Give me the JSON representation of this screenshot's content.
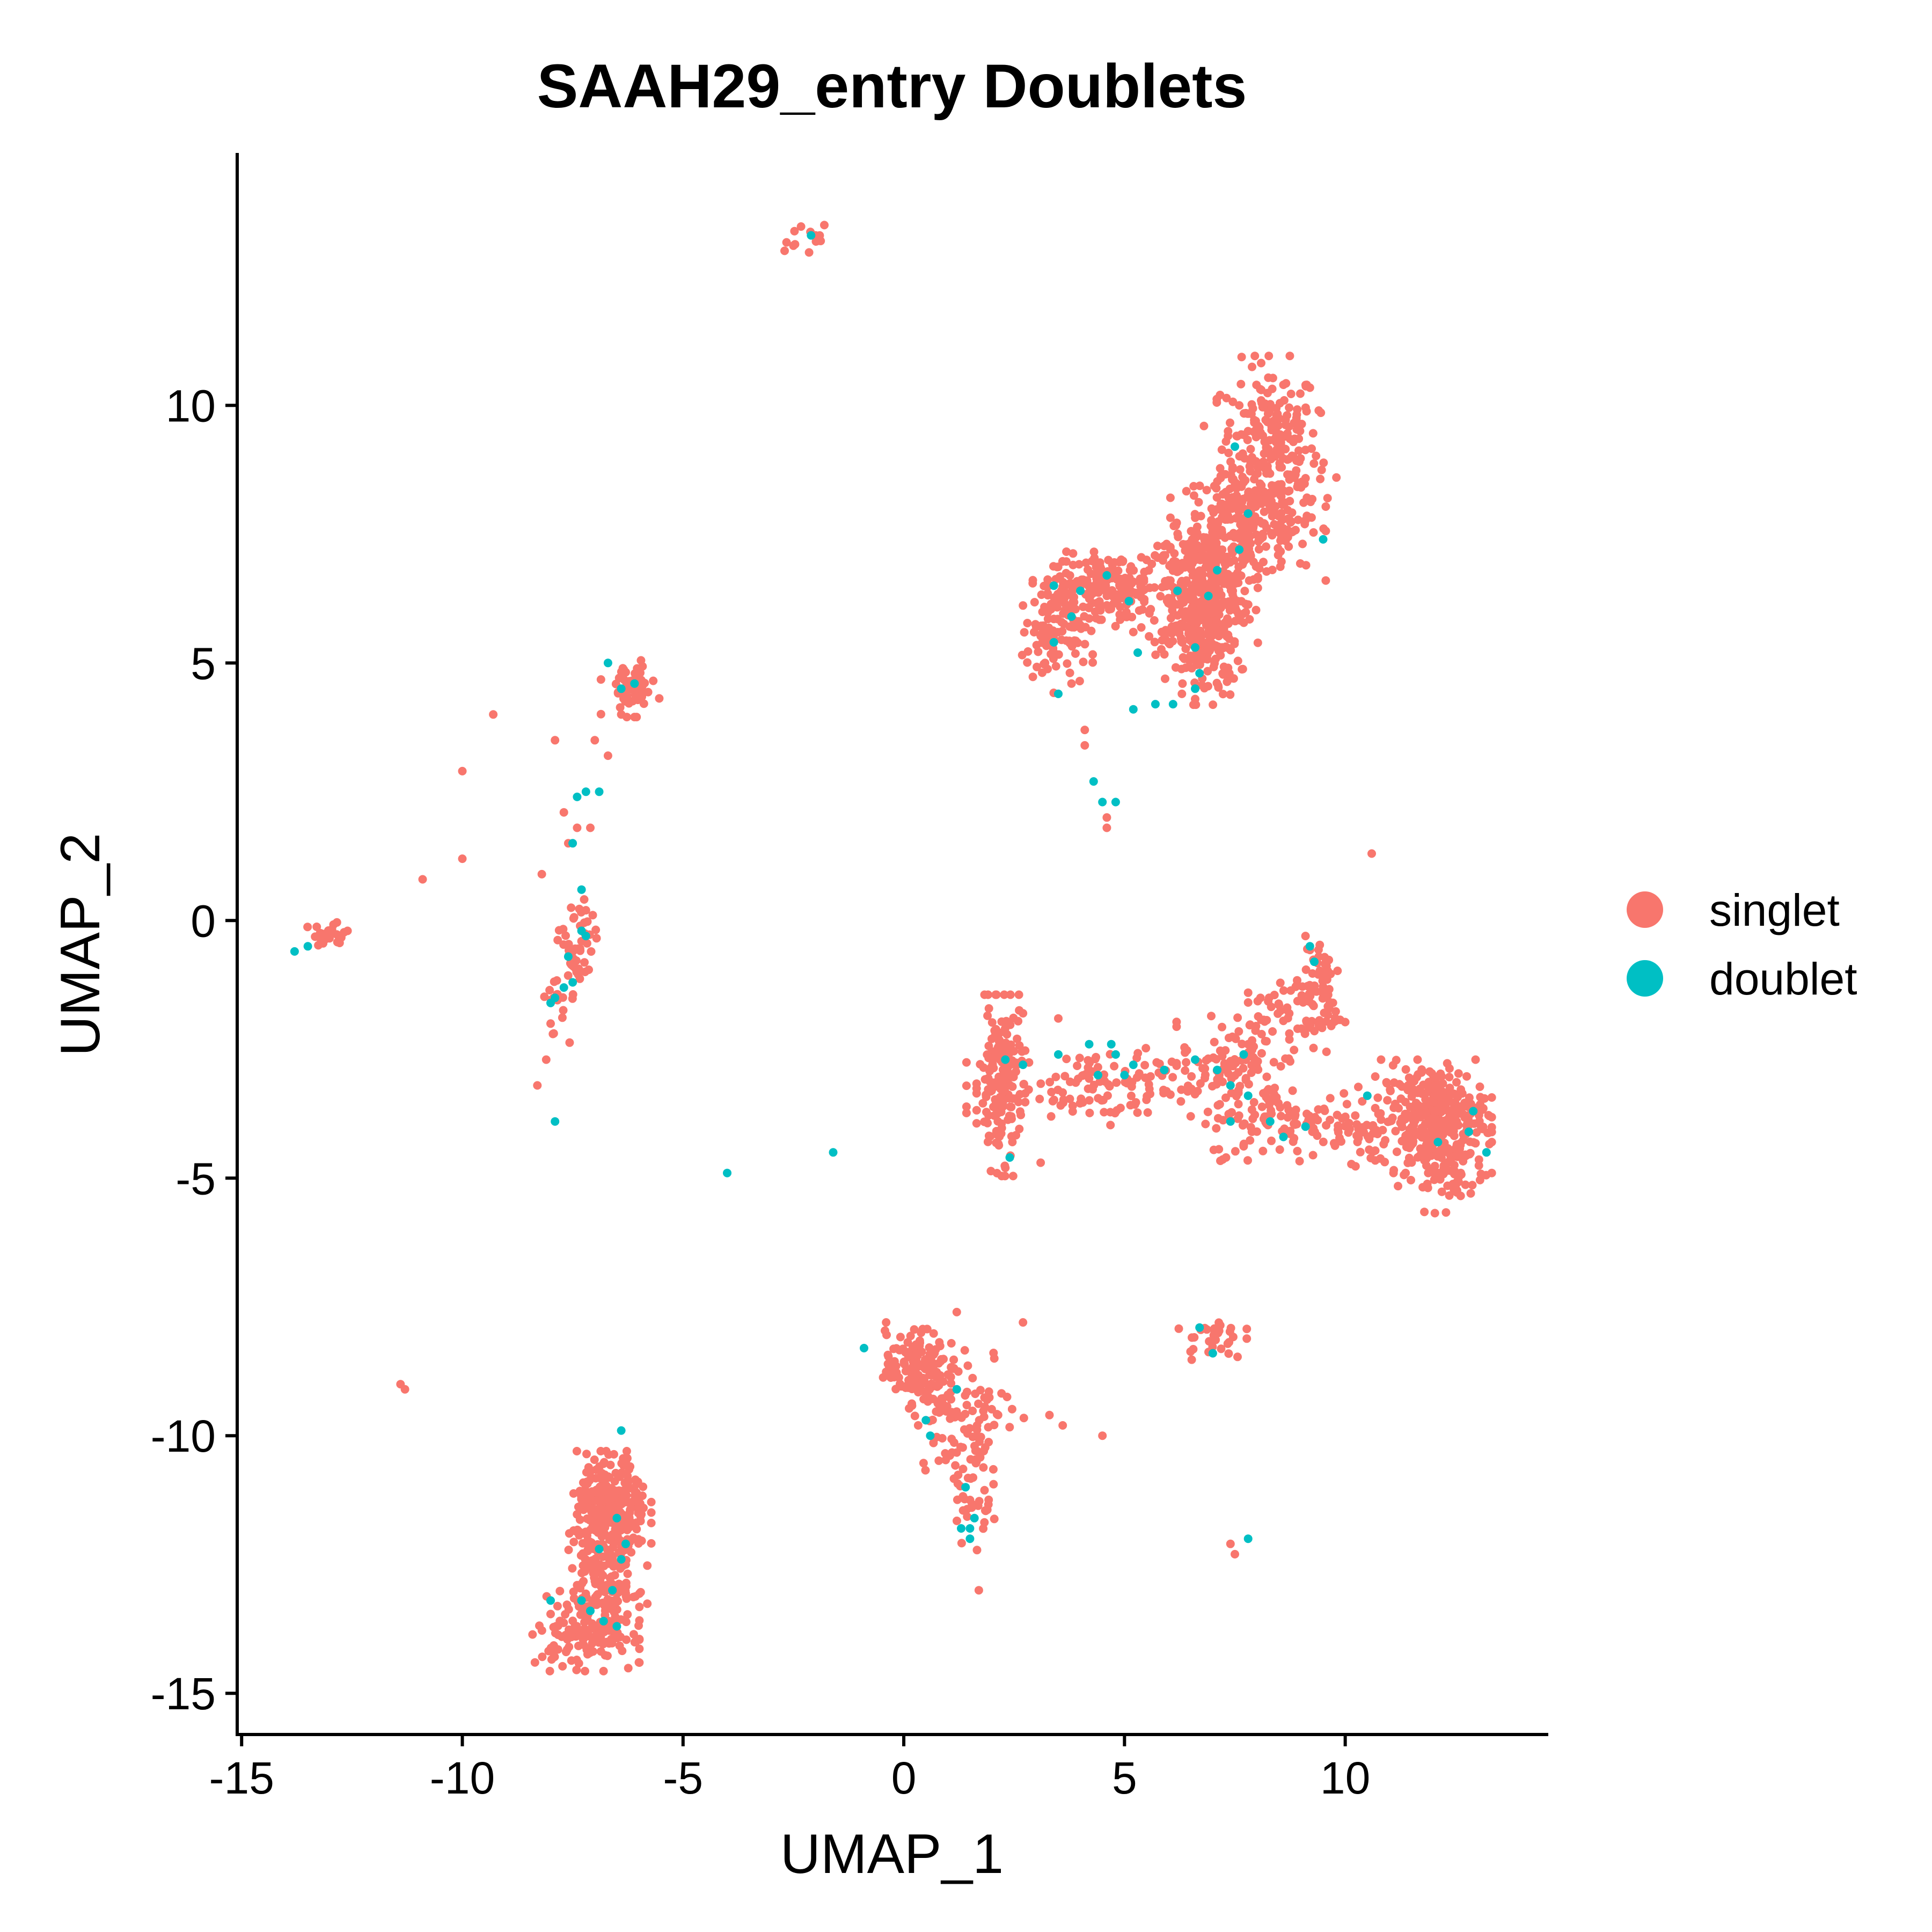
{
  "chart_data": {
    "type": "scatter",
    "title": "SAAH29_entry Doublets",
    "xlabel": "UMAP_1",
    "ylabel": "UMAP_2",
    "xlim": [
      -15.1,
      14.6
    ],
    "ylim": [
      -15.8,
      14.9
    ],
    "xticks": [
      -15,
      -10,
      -5,
      0,
      5,
      10
    ],
    "yticks": [
      -15,
      -10,
      -5,
      0,
      5,
      10
    ],
    "xtick_labels": [
      "-15",
      "-10",
      "-5",
      "0",
      "5",
      "10"
    ],
    "ytick_labels": [
      "-15",
      "-10",
      "-5",
      "0",
      "5",
      "10"
    ],
    "grid": false,
    "legend_position": "right",
    "series": [
      {
        "name": "singlet",
        "color": "#F8766D",
        "clusters": [
          {
            "cx": 8.3,
            "cy": 9.2,
            "sx": 0.55,
            "sy": 0.8,
            "n": 220
          },
          {
            "cx": 7.8,
            "cy": 7.7,
            "sx": 0.8,
            "sy": 0.5,
            "n": 260
          },
          {
            "cx": 6.7,
            "cy": 6.4,
            "sx": 0.6,
            "sy": 0.6,
            "n": 300
          },
          {
            "cx": 6.8,
            "cy": 5.4,
            "sx": 0.4,
            "sy": 0.55,
            "n": 160
          },
          {
            "cx": 4.8,
            "cy": 6.5,
            "sx": 0.7,
            "sy": 0.3,
            "n": 150
          },
          {
            "cx": 3.8,
            "cy": 6.2,
            "sx": 0.5,
            "sy": 0.35,
            "n": 100
          },
          {
            "cx": 3.4,
            "cy": 5.3,
            "sx": 0.4,
            "sy": 0.4,
            "n": 55
          },
          {
            "cx": 2.2,
            "cy": -3.2,
            "sx": 0.25,
            "sy": 0.8,
            "n": 170
          },
          {
            "cx": 4.5,
            "cy": -3.2,
            "sx": 1.4,
            "sy": 0.35,
            "n": 140
          },
          {
            "cx": 7.5,
            "cy": -2.7,
            "sx": 0.6,
            "sy": 0.4,
            "n": 70
          },
          {
            "cx": 8.9,
            "cy": -1.8,
            "sx": 0.5,
            "sy": 0.4,
            "n": 70
          },
          {
            "cx": 9.4,
            "cy": -1.1,
            "sx": 0.25,
            "sy": 0.5,
            "n": 45
          },
          {
            "cx": 8.7,
            "cy": -3.9,
            "sx": 0.9,
            "sy": 0.35,
            "n": 110
          },
          {
            "cx": 10.6,
            "cy": -4.0,
            "sx": 0.6,
            "sy": 0.35,
            "n": 50
          },
          {
            "cx": 12.0,
            "cy": -3.8,
            "sx": 0.6,
            "sy": 0.5,
            "n": 300
          },
          {
            "cx": 12.2,
            "cy": -4.8,
            "sx": 0.5,
            "sy": 0.4,
            "n": 80
          },
          {
            "cx": 0.3,
            "cy": -8.7,
            "sx": 0.35,
            "sy": 0.35,
            "n": 150
          },
          {
            "cx": 1.4,
            "cy": -9.5,
            "sx": 0.6,
            "sy": 0.6,
            "n": 90
          },
          {
            "cx": 1.5,
            "cy": -10.9,
            "sx": 0.25,
            "sy": 0.6,
            "n": 45
          },
          {
            "cx": 7.0,
            "cy": -8.1,
            "sx": 0.35,
            "sy": 0.2,
            "n": 30
          },
          {
            "cx": -6.6,
            "cy": -11.4,
            "sx": 0.4,
            "sy": 0.5,
            "n": 260
          },
          {
            "cx": -6.8,
            "cy": -12.8,
            "sx": 0.45,
            "sy": 0.7,
            "n": 150
          },
          {
            "cx": -7.2,
            "cy": -13.8,
            "sx": 0.55,
            "sy": 0.35,
            "n": 130
          },
          {
            "cx": -6.2,
            "cy": 4.5,
            "sx": 0.3,
            "sy": 0.25,
            "n": 55
          },
          {
            "cx": -7.4,
            "cy": -0.6,
            "sx": 0.2,
            "sy": 0.5,
            "n": 50
          },
          {
            "cx": -7.9,
            "cy": -1.6,
            "sx": 0.15,
            "sy": 0.35,
            "n": 15
          },
          {
            "cx": -13.1,
            "cy": -0.3,
            "sx": 0.25,
            "sy": 0.12,
            "n": 22
          },
          {
            "cx": -2.2,
            "cy": 13.2,
            "sx": 0.25,
            "sy": 0.15,
            "n": 10
          }
        ],
        "points": [
          [
            -11.4,
            -9.0
          ],
          [
            -11.3,
            -9.1
          ],
          [
            -10.9,
            0.8
          ],
          [
            -10.0,
            1.2
          ],
          [
            -10.0,
            2.9
          ],
          [
            -9.3,
            4.0
          ],
          [
            -8.3,
            -3.2
          ],
          [
            -8.1,
            -2.7
          ],
          [
            -8.0,
            -2.0
          ],
          [
            -8.2,
            0.9
          ],
          [
            -7.9,
            3.5
          ],
          [
            -7.7,
            2.1
          ],
          [
            -7.6,
            1.5
          ],
          [
            -7.4,
            1.8
          ],
          [
            -7.1,
            1.8
          ],
          [
            -7.0,
            3.5
          ],
          [
            -6.7,
            3.2
          ],
          [
            -6.4,
            4.0
          ],
          [
            -7.2,
            0.2
          ],
          [
            -7.3,
            -0.4
          ],
          [
            8.1,
            10.3
          ],
          [
            8.6,
            10.4
          ],
          [
            7.6,
            10.0
          ],
          [
            9.4,
            9.9
          ],
          [
            9.8,
            8.6
          ],
          [
            9.6,
            8.2
          ],
          [
            7.3,
            9.3
          ],
          [
            6.8,
            9.6
          ],
          [
            4.1,
            3.4
          ],
          [
            4.1,
            3.7
          ],
          [
            4.6,
            1.8
          ],
          [
            4.6,
            2.0
          ],
          [
            3.2,
            5.0
          ],
          [
            3.8,
            4.6
          ],
          [
            5.2,
            5.6
          ],
          [
            6.3,
            4.4
          ],
          [
            6.6,
            4.3
          ],
          [
            10.6,
            1.3
          ],
          [
            9.1,
            -0.3
          ],
          [
            9.4,
            -0.7
          ],
          [
            7.3,
            -4.6
          ],
          [
            6.5,
            -3.8
          ],
          [
            2.3,
            -4.8
          ],
          [
            3.1,
            -4.7
          ],
          [
            2.7,
            -1.8
          ],
          [
            3.5,
            -1.9
          ],
          [
            7.8,
            -1.4
          ],
          [
            3.3,
            -9.6
          ],
          [
            3.6,
            -9.8
          ],
          [
            4.5,
            -10.0
          ],
          [
            1.7,
            -13.0
          ],
          [
            7.4,
            -12.1
          ],
          [
            7.5,
            -12.3
          ],
          [
            -0.4,
            -7.8
          ],
          [
            1.2,
            -7.6
          ],
          [
            2.7,
            -7.8
          ],
          [
            -2.7,
            13.0
          ],
          [
            -2.5,
            13.1
          ],
          [
            -2.0,
            13.3
          ],
          [
            -1.8,
            13.5
          ],
          [
            -12.6,
            -0.2
          ],
          [
            -12.8,
            -0.3
          ],
          [
            -6.0,
            -14.4
          ],
          [
            -6.3,
            -12.5
          ],
          [
            -6.2,
            -10.6
          ]
        ]
      },
      {
        "name": "doublet",
        "color": "#00BFC4",
        "points": [
          [
            -13.8,
            -0.6
          ],
          [
            -13.5,
            -0.5
          ],
          [
            -6.7,
            5.0
          ],
          [
            -6.1,
            4.6
          ],
          [
            -6.4,
            4.5
          ],
          [
            -7.4,
            2.4
          ],
          [
            -7.2,
            2.5
          ],
          [
            -6.9,
            2.5
          ],
          [
            -7.5,
            1.5
          ],
          [
            -7.3,
            0.6
          ],
          [
            -7.3,
            -0.2
          ],
          [
            -7.2,
            -0.3
          ],
          [
            -7.6,
            -0.7
          ],
          [
            -7.7,
            -1.3
          ],
          [
            -7.5,
            -1.2
          ],
          [
            -7.9,
            -1.5
          ],
          [
            -8.0,
            -1.6
          ],
          [
            -7.9,
            -3.9
          ],
          [
            -4.0,
            -4.9
          ],
          [
            -1.6,
            -4.5
          ],
          [
            -2.1,
            13.3
          ],
          [
            -6.4,
            -9.9
          ],
          [
            -6.5,
            -11.6
          ],
          [
            -6.3,
            -12.1
          ],
          [
            -6.4,
            -12.4
          ],
          [
            -6.9,
            -12.2
          ],
          [
            -6.6,
            -13.0
          ],
          [
            -7.3,
            -13.2
          ],
          [
            -7.1,
            -13.4
          ],
          [
            -6.8,
            -13.6
          ],
          [
            -6.5,
            -13.7
          ],
          [
            -8.0,
            -13.2
          ],
          [
            -0.9,
            -8.3
          ],
          [
            0.5,
            -9.7
          ],
          [
            0.6,
            -10.0
          ],
          [
            1.2,
            -9.1
          ],
          [
            1.4,
            -11.0
          ],
          [
            1.5,
            -11.8
          ],
          [
            1.3,
            -11.8
          ],
          [
            1.5,
            -12.0
          ],
          [
            1.6,
            -11.6
          ],
          [
            6.7,
            -7.9
          ],
          [
            7.0,
            -8.4
          ],
          [
            7.8,
            -12.0
          ],
          [
            4.3,
            2.7
          ],
          [
            4.5,
            2.3
          ],
          [
            4.8,
            2.3
          ],
          [
            3.5,
            4.4
          ],
          [
            5.2,
            4.1
          ],
          [
            5.7,
            4.2
          ],
          [
            6.1,
            4.2
          ],
          [
            6.7,
            4.8
          ],
          [
            6.6,
            4.5
          ],
          [
            3.4,
            5.4
          ],
          [
            5.3,
            5.2
          ],
          [
            3.8,
            5.9
          ],
          [
            3.4,
            6.5
          ],
          [
            4.0,
            6.4
          ],
          [
            6.6,
            5.3
          ],
          [
            6.9,
            6.3
          ],
          [
            7.6,
            7.2
          ],
          [
            7.8,
            7.9
          ],
          [
            6.2,
            6.4
          ],
          [
            9.5,
            7.4
          ],
          [
            4.6,
            6.7
          ],
          [
            5.1,
            6.2
          ],
          [
            7.1,
            6.8
          ],
          [
            7.5,
            9.2
          ],
          [
            9.2,
            -0.5
          ],
          [
            9.3,
            -0.8
          ],
          [
            2.3,
            -2.7
          ],
          [
            2.7,
            -2.8
          ],
          [
            2.4,
            -4.6
          ],
          [
            3.5,
            -2.6
          ],
          [
            4.2,
            -2.4
          ],
          [
            4.7,
            -2.4
          ],
          [
            4.8,
            -2.6
          ],
          [
            5.2,
            -2.8
          ],
          [
            5.9,
            -2.9
          ],
          [
            6.6,
            -2.7
          ],
          [
            7.1,
            -2.9
          ],
          [
            7.4,
            -3.2
          ],
          [
            7.7,
            -2.6
          ],
          [
            7.8,
            -3.4
          ],
          [
            7.4,
            -3.9
          ],
          [
            8.3,
            -3.9
          ],
          [
            8.6,
            -4.2
          ],
          [
            9.1,
            -4.0
          ],
          [
            10.5,
            -3.4
          ],
          [
            12.1,
            -4.3
          ],
          [
            12.8,
            -4.1
          ],
          [
            12.9,
            -3.7
          ],
          [
            13.2,
            -4.5
          ],
          [
            4.4,
            -3.0
          ],
          [
            5.0,
            -3.0
          ]
        ]
      }
    ]
  }
}
